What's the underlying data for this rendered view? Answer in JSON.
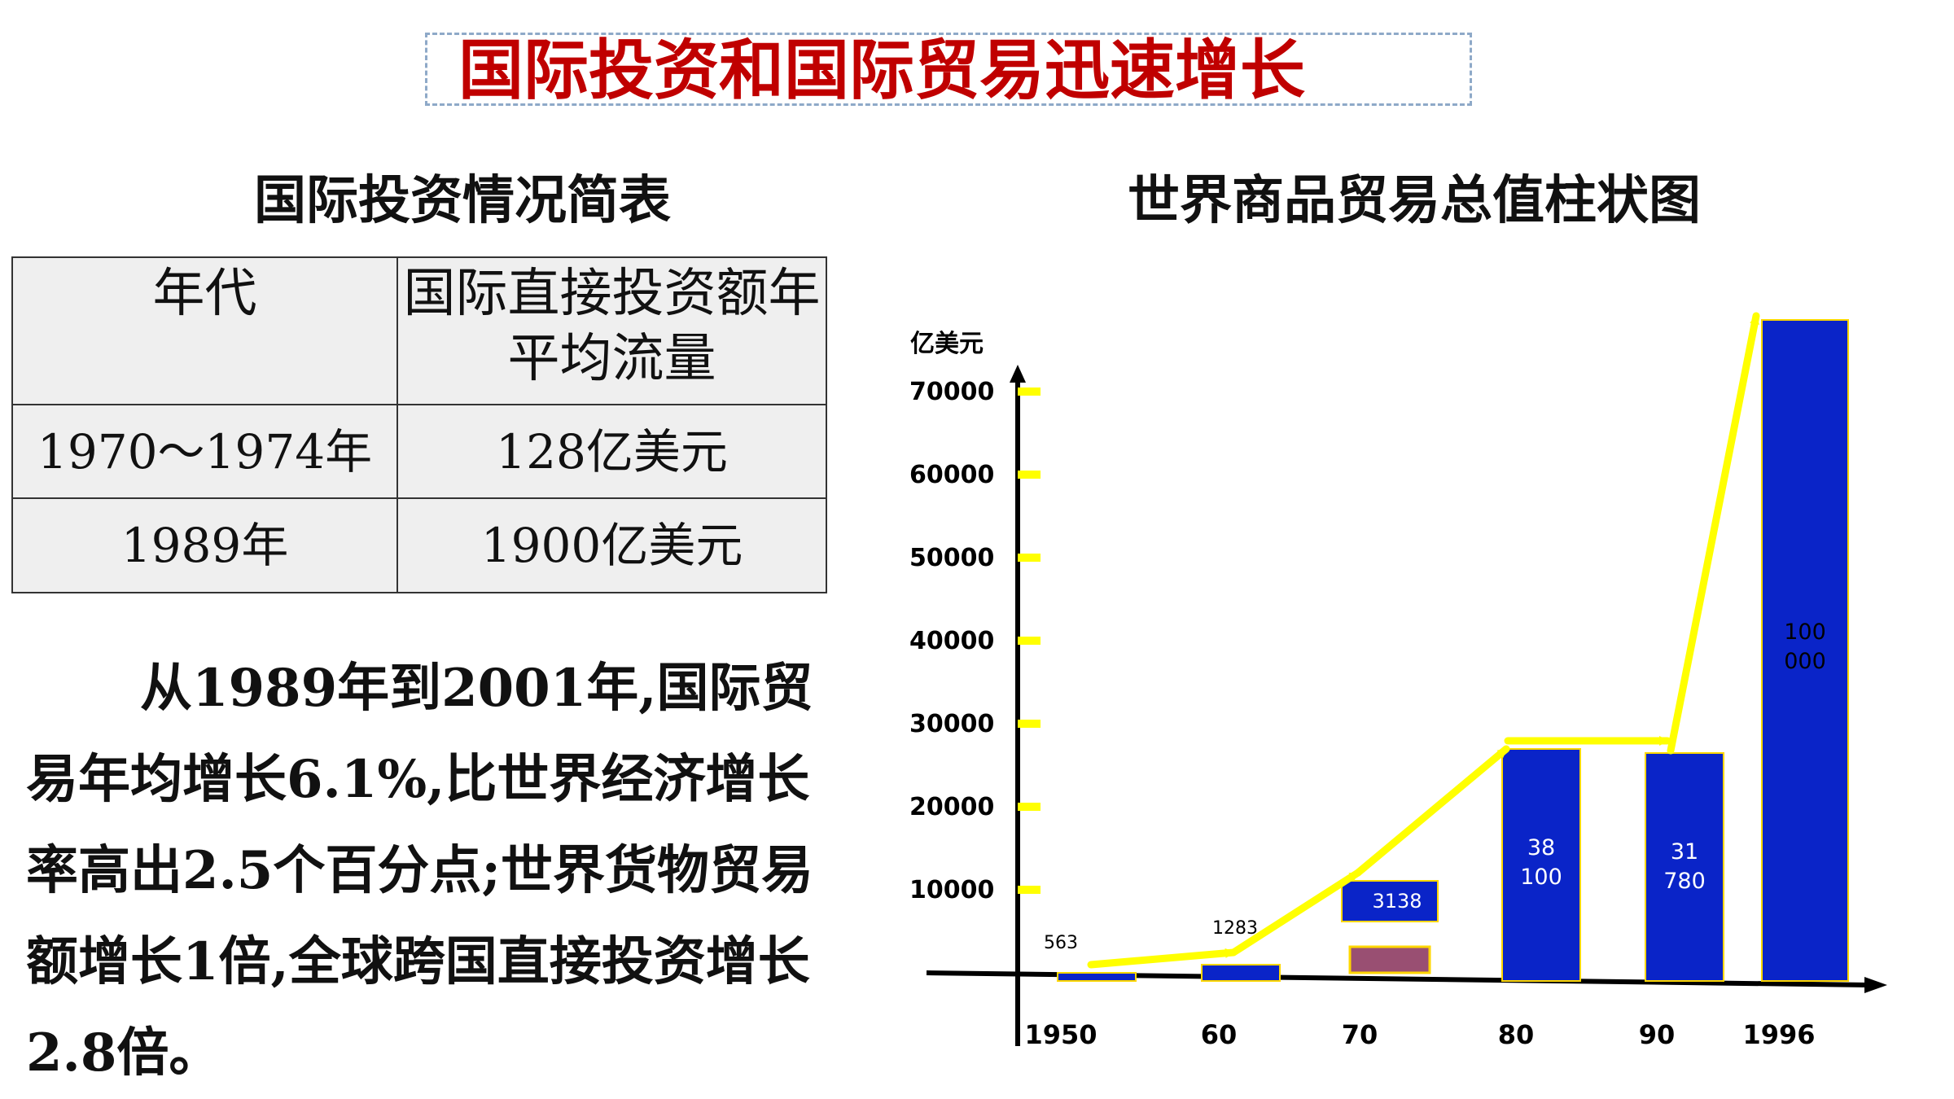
{
  "banner": {
    "title": "国际投资和国际贸易迅速增长"
  },
  "investment_table": {
    "title": "国际投资情况简表",
    "headers": [
      "年代",
      "国际直接投资额年平均流量"
    ],
    "rows": [
      [
        "1970～1974年",
        "128亿美元"
      ],
      [
        "1989年",
        "1900亿美元"
      ]
    ]
  },
  "paragraph": "从1989年到2001年,国际贸易年均增长6.1%,比世界经济增长率高出2.5个百分点;世界货物贸易额增长1倍,全球跨国直接投资增长2.8倍。",
  "chart_data": {
    "type": "bar",
    "title": "世界商品贸易总值柱状图",
    "ylabel": "亿美元",
    "xlabel": "",
    "categories": [
      "1950",
      "60",
      "70",
      "80",
      "90",
      "1996"
    ],
    "values": [
      563,
      1283,
      3138,
      38100,
      31780,
      100000
    ],
    "value_labels": [
      "563",
      "1283",
      "3138",
      "38\n100",
      "31\n780",
      "100\n000"
    ],
    "yticks": [
      10000,
      20000,
      30000,
      40000,
      50000,
      60000,
      70000
    ],
    "colors": {
      "bar": "#0a24c8",
      "bar_edge": "#ffd700",
      "arrow": "#ffff00",
      "tick": "#ffff00",
      "extra_block": "#994f72"
    },
    "trend_arrow": true
  }
}
